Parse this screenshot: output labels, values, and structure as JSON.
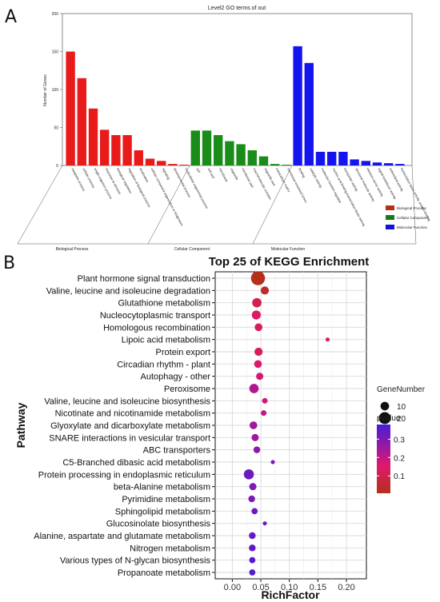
{
  "panels": {
    "a_letter": "A",
    "b_letter": "B"
  },
  "chart_data": [
    {
      "type": "bar",
      "title": "Level2 GO terms of out",
      "ylabel": "Number of Genes",
      "ylim": [
        0,
        200
      ],
      "yticks": [
        0,
        50,
        100,
        150,
        200
      ],
      "group_labels": [
        "Biological Process",
        "Cellular Component",
        "Molecular Function"
      ],
      "legend": [
        {
          "label": "Biological Process",
          "color": "#b5301a"
        },
        {
          "label": "Cellular Component",
          "color": "#1a7a1a"
        },
        {
          "label": "Molecular Function",
          "color": "#1414d4"
        }
      ],
      "colors": {
        "Biological Process": "#e81a1a",
        "Cellular Component": "#198c19",
        "Molecular Function": "#1414ee"
      },
      "categories": [
        "metabolic process",
        "cellular process",
        "single-organism process",
        "response to stimulus",
        "biological regulation",
        "regulation of biological process",
        "localization",
        "cellular component organization or biogenesis",
        "signaling",
        "developmental process",
        "multicellular organismal process",
        "cell",
        "cell part",
        "membrane",
        "organelle",
        "membrane part",
        "macromolecular complex",
        "organelle part",
        "extracellular matrix",
        "membrane-enclosed lumen",
        "binding",
        "catalytic activity",
        "molecular function regulator",
        "nucleic acid binding transcription factor activity",
        "transporter activity",
        "structural molecule activity",
        "electron carrier activity",
        "signal transducer activity",
        "antioxidant activity",
        "transcription factor activity, protein binding"
      ],
      "groups": [
        "Biological Process",
        "Biological Process",
        "Biological Process",
        "Biological Process",
        "Biological Process",
        "Biological Process",
        "Biological Process",
        "Biological Process",
        "Biological Process",
        "Biological Process",
        "Biological Process",
        "Cellular Component",
        "Cellular Component",
        "Cellular Component",
        "Cellular Component",
        "Cellular Component",
        "Cellular Component",
        "Cellular Component",
        "Cellular Component",
        "Cellular Component",
        "Molecular Function",
        "Molecular Function",
        "Molecular Function",
        "Molecular Function",
        "Molecular Function",
        "Molecular Function",
        "Molecular Function",
        "Molecular Function",
        "Molecular Function",
        "Molecular Function"
      ],
      "values": [
        150,
        115,
        75,
        47,
        40,
        40,
        20,
        9,
        6,
        2,
        1,
        46,
        46,
        40,
        32,
        28,
        20,
        12,
        2,
        1,
        157,
        135,
        18,
        18,
        18,
        8,
        6,
        4,
        3,
        2
      ]
    },
    {
      "type": "scatter",
      "title": "Top 25 of KEGG Enrichment",
      "xlabel": "RichFactor",
      "ylabel": "Pathway",
      "xlim": [
        -0.03,
        0.235
      ],
      "xticks": [
        0.0,
        0.05,
        0.1,
        0.15,
        0.2
      ],
      "xtick_labels": [
        "0.00",
        "0.05",
        "0.10",
        "0.15",
        "0.20"
      ],
      "size_legend": {
        "title": "GeneNumber",
        "values": [
          10,
          20
        ]
      },
      "color_legend": {
        "title": "pvalue",
        "ticks": [
          0.1,
          0.2,
          0.3
        ],
        "min": 0.005,
        "max": 0.38,
        "low_color": "#b5301a",
        "mid_color": "#e0186e",
        "high_color": "#4a1ad8"
      },
      "grid": true,
      "categories": [
        "Plant hormone signal transduction",
        "Valine, leucine and isoleucine degradation",
        "Glutathione metabolism",
        "Nucleocytoplasmic transport",
        "Homologous recombination",
        "Lipoic acid metabolism",
        "Protein export",
        "Circadian rhythm - plant",
        "Autophagy - other",
        "Peroxisome",
        "Valine, leucine and isoleucine biosynthesis",
        "Nicotinate and nicotinamide metabolism",
        "Glyoxylate and dicarboxylate metabolism",
        "SNARE interactions in vesicular transport",
        "ABC transporters",
        "C5-Branched dibasic acid metabolism",
        "Protein processing in endoplasmic reticulum",
        "beta-Alanine metabolism",
        "Pyrimidine metabolism",
        "Sphingolipid metabolism",
        "Glucosinolate biosynthesis",
        "Alanine, aspartate and glutamate metabolism",
        "Nitrogen metabolism",
        "Various types of N-glycan biosynthesis",
        "Propanoate metabolism"
      ],
      "x": [
        0.045,
        0.057,
        0.043,
        0.042,
        0.046,
        0.167,
        0.046,
        0.045,
        0.048,
        0.038,
        0.057,
        0.055,
        0.037,
        0.04,
        0.043,
        0.071,
        0.029,
        0.036,
        0.034,
        0.039,
        0.057,
        0.035,
        0.035,
        0.035,
        0.035
      ],
      "gene_number": [
        28,
        9,
        12,
        11,
        8,
        2,
        9,
        8,
        7,
        12,
        4,
        4,
        8,
        7,
        6,
        2,
        14,
        7,
        6,
        5,
        2,
        6,
        6,
        5,
        5
      ],
      "pvalue": [
        0.005,
        0.04,
        0.1,
        0.14,
        0.12,
        0.13,
        0.12,
        0.14,
        0.17,
        0.23,
        0.18,
        0.2,
        0.25,
        0.25,
        0.28,
        0.3,
        0.33,
        0.3,
        0.3,
        0.33,
        0.33,
        0.34,
        0.35,
        0.36,
        0.36
      ]
    }
  ]
}
